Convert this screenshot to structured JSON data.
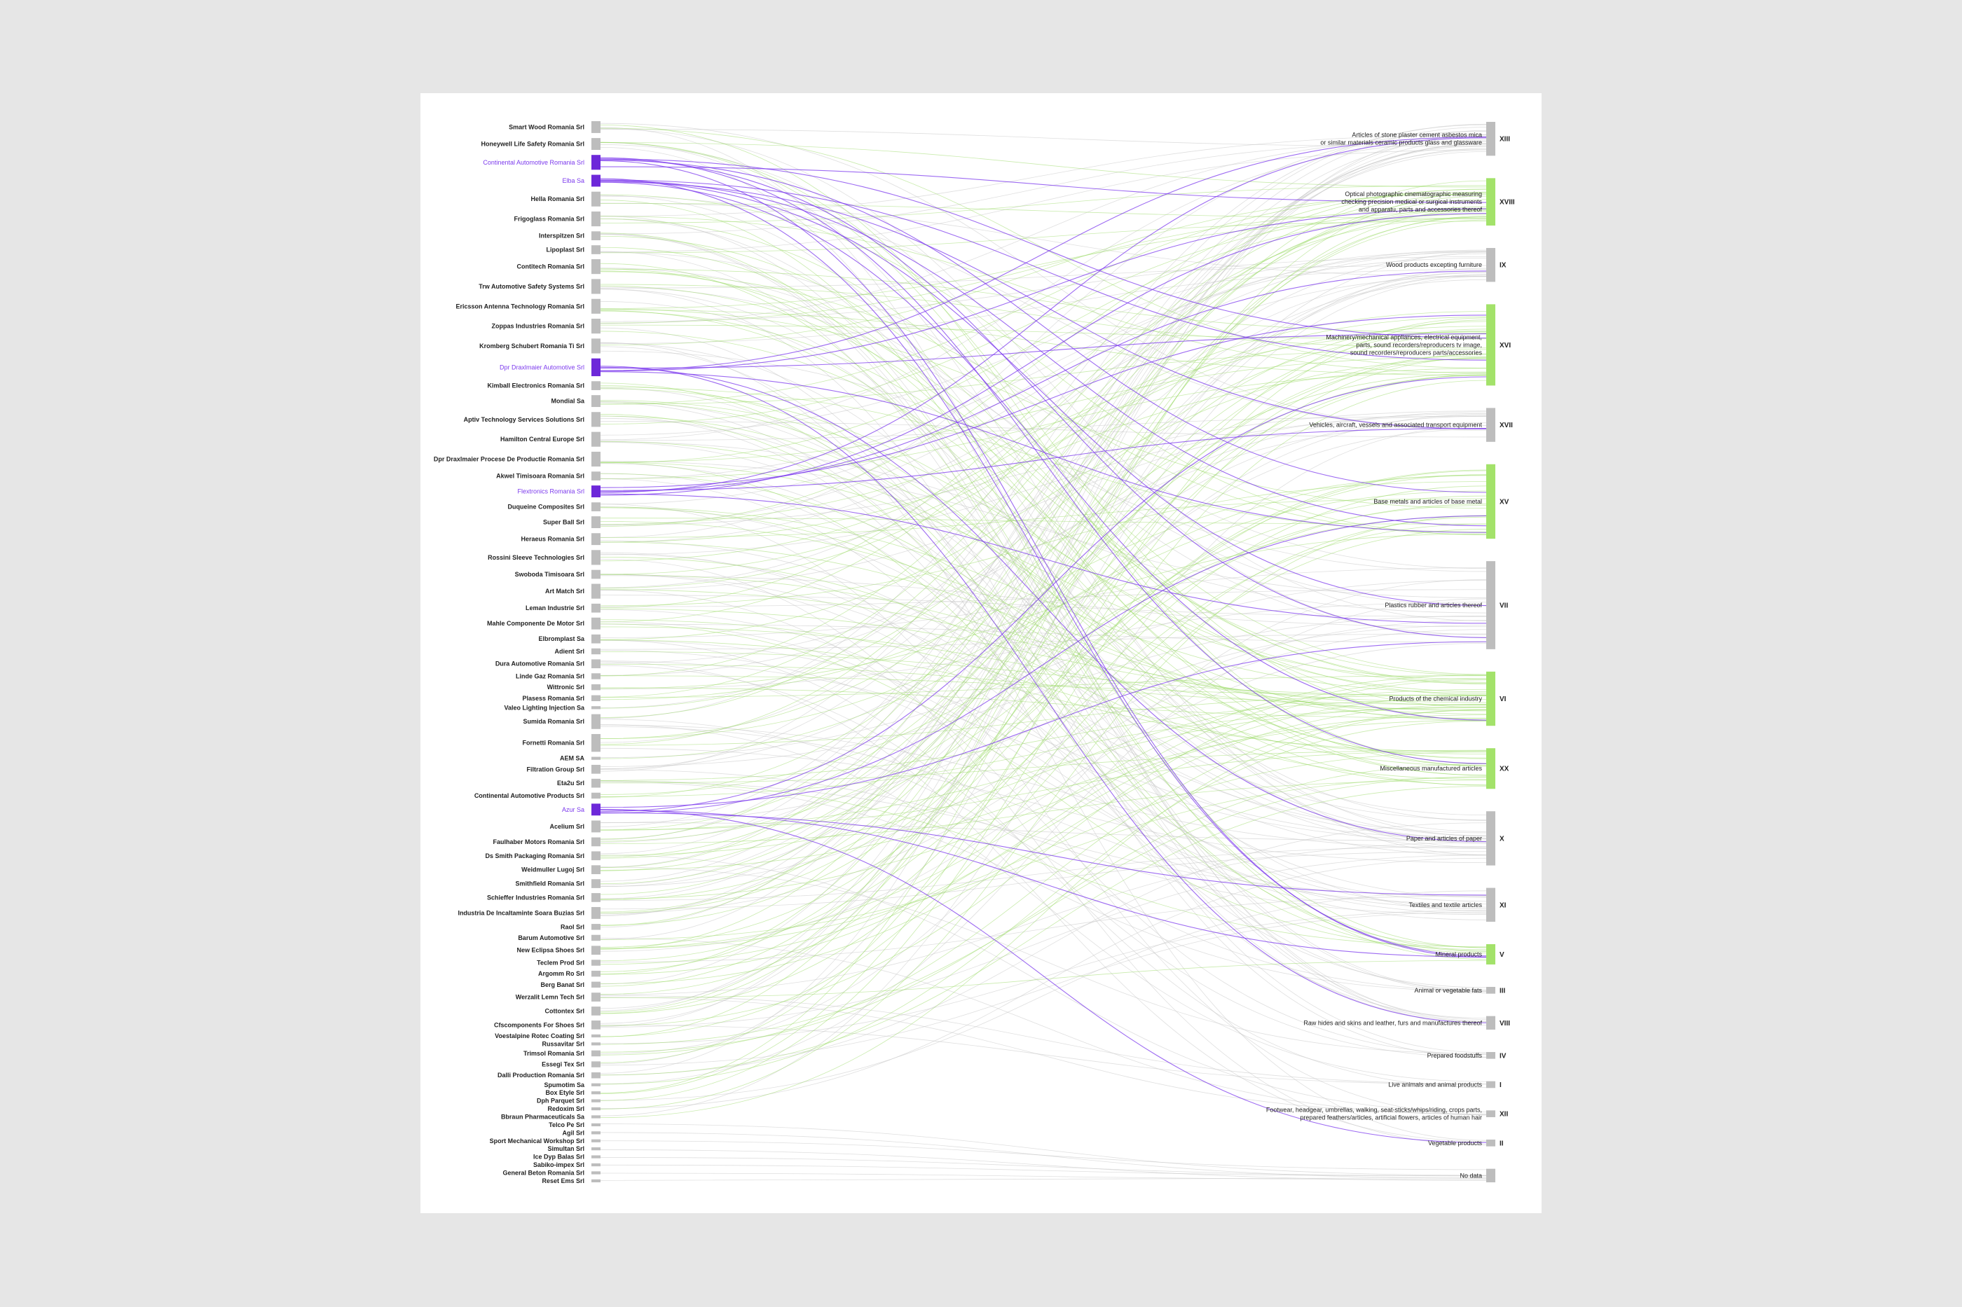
{
  "colors": {
    "background": "#e6e6e6",
    "card": "#ffffff",
    "node_grey": "#bdbdbd",
    "node_green": "#a3e26a",
    "node_purple": "#6d28d9",
    "link_grey": "#c4c4c4",
    "link_green": "#9ddb6a",
    "link_purple": "#7c3aed"
  },
  "companies": [
    {
      "name": "Smart Wood Romania Srl",
      "weight": 4,
      "highlight": false
    },
    {
      "name": "Honeywell Life Safety Romania Srl",
      "weight": 4,
      "highlight": false
    },
    {
      "name": "Continental Automotive Romania Srl",
      "weight": 5,
      "highlight": true
    },
    {
      "name": "Elba Sa",
      "weight": 4,
      "highlight": true
    },
    {
      "name": "Hella Romania Srl",
      "weight": 5,
      "highlight": false
    },
    {
      "name": "Frigoglass Romania Srl",
      "weight": 5,
      "highlight": false
    },
    {
      "name": "Interspitzen Srl",
      "weight": 3,
      "highlight": false
    },
    {
      "name": "Lipoplast Srl",
      "weight": 3,
      "highlight": false
    },
    {
      "name": "Contitech Romania Srl",
      "weight": 5,
      "highlight": false
    },
    {
      "name": "Trw Automotive Safety Systems Srl",
      "weight": 5,
      "highlight": false
    },
    {
      "name": "Ericsson Antenna Technology Romania Srl",
      "weight": 5,
      "highlight": false
    },
    {
      "name": "Zoppas Industries Romania Srl",
      "weight": 5,
      "highlight": false
    },
    {
      "name": "Kromberg Schubert Romania Ti Srl",
      "weight": 5,
      "highlight": false
    },
    {
      "name": "Dpr Draxlmaier Automotive Srl",
      "weight": 6,
      "highlight": true
    },
    {
      "name": "Kimball Electronics Romania Srl",
      "weight": 3,
      "highlight": false
    },
    {
      "name": "Mondial Sa",
      "weight": 4,
      "highlight": false
    },
    {
      "name": "Aptiv Technology Services Solutions Srl",
      "weight": 5,
      "highlight": false
    },
    {
      "name": "Hamilton Central Europe Srl",
      "weight": 5,
      "highlight": false
    },
    {
      "name": "Dpr Draxlmaier Procese De Productie Romania Srl",
      "weight": 5,
      "highlight": false
    },
    {
      "name": "Akwel Timisoara Romania Srl",
      "weight": 3,
      "highlight": false
    },
    {
      "name": "Flextronics Romania Srl",
      "weight": 4,
      "highlight": true
    },
    {
      "name": "Duqueine Composites Srl",
      "weight": 3,
      "highlight": false
    },
    {
      "name": "Super Ball Srl",
      "weight": 4,
      "highlight": false
    },
    {
      "name": "Heraeus Romania Srl",
      "weight": 4,
      "highlight": false
    },
    {
      "name": "Rossini Sleeve Technologies Srl",
      "weight": 5,
      "highlight": false
    },
    {
      "name": "Swoboda Timisoara Srl",
      "weight": 3,
      "highlight": false
    },
    {
      "name": "Art Match Srl",
      "weight": 5,
      "highlight": false
    },
    {
      "name": "Leman Industrie Srl",
      "weight": 3,
      "highlight": false
    },
    {
      "name": "Mahle Componente De Motor Srl",
      "weight": 4,
      "highlight": false
    },
    {
      "name": "Elbromplast Sa",
      "weight": 3,
      "highlight": false
    },
    {
      "name": "Adient Srl",
      "weight": 2,
      "highlight": false
    },
    {
      "name": "Dura Automotive Romania Srl",
      "weight": 3,
      "highlight": false
    },
    {
      "name": "Linde Gaz Romania Srl",
      "weight": 2,
      "highlight": false
    },
    {
      "name": "Wittronic Srl",
      "weight": 2,
      "highlight": false
    },
    {
      "name": "Plasess Romania Srl",
      "weight": 2,
      "highlight": false
    },
    {
      "name": "Valeo Lighting Injection Sa",
      "weight": 1,
      "highlight": false
    },
    {
      "name": "Sumida Romania Srl",
      "weight": 5,
      "highlight": false
    },
    {
      "name": "Fornetti Romania Srl",
      "weight": 6,
      "highlight": false
    },
    {
      "name": "AEM SA",
      "weight": 1,
      "highlight": false
    },
    {
      "name": "Filtration Group Srl",
      "weight": 3,
      "highlight": false
    },
    {
      "name": "Eta2u Srl",
      "weight": 3,
      "highlight": false
    },
    {
      "name": "Continental Automotive Products Srl",
      "weight": 2,
      "highlight": false
    },
    {
      "name": "Azur Sa",
      "weight": 4,
      "highlight": true
    },
    {
      "name": "Acelium Srl",
      "weight": 4,
      "highlight": false
    },
    {
      "name": "Faulhaber Motors Romania Srl",
      "weight": 3,
      "highlight": false
    },
    {
      "name": "Ds Smith Packaging Romania Srl",
      "weight": 3,
      "highlight": false
    },
    {
      "name": "Weidmuller Lugoj Srl",
      "weight": 3,
      "highlight": false
    },
    {
      "name": "Smithfield Romania Srl",
      "weight": 3,
      "highlight": false
    },
    {
      "name": "Schieffer Industries Romania Srl",
      "weight": 3,
      "highlight": false
    },
    {
      "name": "Industria De Incaltaminte Soara Buzias Srl",
      "weight": 4,
      "highlight": false
    },
    {
      "name": "Raol Srl",
      "weight": 2,
      "highlight": false
    },
    {
      "name": "Barum Automotive Srl",
      "weight": 2,
      "highlight": false
    },
    {
      "name": "New Eclipsa Shoes Srl",
      "weight": 3,
      "highlight": false
    },
    {
      "name": "Teclem Prod Srl",
      "weight": 2,
      "highlight": false
    },
    {
      "name": "Argomm Ro Srl",
      "weight": 2,
      "highlight": false
    },
    {
      "name": "Berg Banat Srl",
      "weight": 2,
      "highlight": false
    },
    {
      "name": "Werzalit Lemn Tech Srl",
      "weight": 3,
      "highlight": false
    },
    {
      "name": "Cottontex Srl",
      "weight": 3,
      "highlight": false
    },
    {
      "name": "Cfscomponents For Shoes Srl",
      "weight": 3,
      "highlight": false
    },
    {
      "name": "Voestalpine Rotec Coating Srl",
      "weight": 1,
      "highlight": false
    },
    {
      "name": "Russavitar Srl",
      "weight": 1,
      "highlight": false
    },
    {
      "name": "Trimsol Romania Srl",
      "weight": 2,
      "highlight": false
    },
    {
      "name": "Essegi Tex Srl",
      "weight": 2,
      "highlight": false
    },
    {
      "name": "Dalli Production Romania Srl",
      "weight": 2,
      "highlight": false
    },
    {
      "name": "Spumotim Sa",
      "weight": 1,
      "highlight": false
    },
    {
      "name": "Box Etyle Srl",
      "weight": 1,
      "highlight": false
    },
    {
      "name": "Dph Parquet Srl",
      "weight": 1,
      "highlight": false
    },
    {
      "name": "Redoxim Srl",
      "weight": 1,
      "highlight": false
    },
    {
      "name": "Bbraun Pharmaceuticals Sa",
      "weight": 1,
      "highlight": false
    },
    {
      "name": "Telco Pe Srl",
      "weight": 1,
      "highlight": false
    },
    {
      "name": "Agil Srl",
      "weight": 1,
      "highlight": false
    },
    {
      "name": "Sport Mechanical Workshop Srl",
      "weight": 1,
      "highlight": false
    },
    {
      "name": "Simultan Srl",
      "weight": 1,
      "highlight": false
    },
    {
      "name": "Ice Dyp Balas Srl",
      "weight": 1,
      "highlight": false
    },
    {
      "name": "Sabiko-impex Srl",
      "weight": 1,
      "highlight": false
    },
    {
      "name": "General Beton Romania Srl",
      "weight": 1,
      "highlight": false
    },
    {
      "name": "Reset Ems Srl",
      "weight": 1,
      "highlight": false
    }
  ],
  "sections": [
    {
      "code": "XIII",
      "label": "Articles of stone plaster cement asbestos mica|or similar materials ceramic products glass and glassware",
      "weight": 5,
      "color": "grey"
    },
    {
      "code": "XVIII",
      "label": "Optical photographic cinematographic measuring|checking precision medical or surgical instruments|and apparatu, parts and accessories thereof",
      "weight": 7,
      "color": "green"
    },
    {
      "code": "IX",
      "label": "Wood products excepting furniture",
      "weight": 5,
      "color": "grey"
    },
    {
      "code": "XVI",
      "label": "Machinery/mechanical appliances, electrical equipment,|parts, sound recorders/reproducers tv image,|sound recorders/reproducers parts/accessories",
      "weight": 12,
      "color": "green"
    },
    {
      "code": "XVII",
      "label": "Vehicles, aircraft, vessels and associated transport equipment",
      "weight": 5,
      "color": "grey"
    },
    {
      "code": "XV",
      "label": "Base metals and articles of base metal",
      "weight": 11,
      "color": "green"
    },
    {
      "code": "VII",
      "label": "Plastics rubber and articles thereof",
      "weight": 13,
      "color": "grey"
    },
    {
      "code": "VI",
      "label": "Products of the chemical industry",
      "weight": 8,
      "color": "green"
    },
    {
      "code": "XX",
      "label": "Miscellaneous manufactured articles",
      "weight": 6,
      "color": "green"
    },
    {
      "code": "X",
      "label": "Paper and articles of paper",
      "weight": 8,
      "color": "grey"
    },
    {
      "code": "XI",
      "label": "Textiles and textile articles",
      "weight": 5,
      "color": "grey"
    },
    {
      "code": "V",
      "label": "Mineral products",
      "weight": 3,
      "color": "green"
    },
    {
      "code": "III",
      "label": "Animal or vegetable fats",
      "weight": 1,
      "color": "grey"
    },
    {
      "code": "VIII",
      "label": "Raw hides and skins and leather, furs and manufactures thereof",
      "weight": 2,
      "color": "grey"
    },
    {
      "code": "IV",
      "label": "Prepared foodstuffs",
      "weight": 1,
      "color": "grey"
    },
    {
      "code": "I",
      "label": "Live animals and animal products",
      "weight": 1,
      "color": "grey"
    },
    {
      "code": "XII",
      "label": "Footwear, headgear, umbrellas, walking, seat-sticks/whips/riding, crops parts,|prepared feathers/articles, artificial flowers, articles of human hair",
      "weight": 1,
      "color": "grey"
    },
    {
      "code": "II",
      "label": "Vegetable products",
      "weight": 1,
      "color": "grey"
    },
    {
      "code": "No data",
      "label": "No data",
      "weight": 2,
      "color": "grey"
    }
  ]
}
